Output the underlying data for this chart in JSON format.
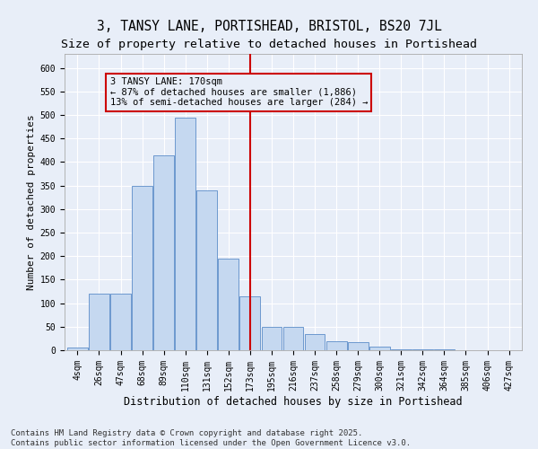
{
  "title1": "3, TANSY LANE, PORTISHEAD, BRISTOL, BS20 7JL",
  "title2": "Size of property relative to detached houses in Portishead",
  "xlabel": "Distribution of detached houses by size in Portishead",
  "ylabel": "Number of detached properties",
  "categories": [
    "4sqm",
    "26sqm",
    "47sqm",
    "68sqm",
    "89sqm",
    "110sqm",
    "131sqm",
    "152sqm",
    "173sqm",
    "195sqm",
    "216sqm",
    "237sqm",
    "258sqm",
    "279sqm",
    "300sqm",
    "321sqm",
    "342sqm",
    "364sqm",
    "385sqm",
    "406sqm",
    "427sqm"
  ],
  "values": [
    5,
    120,
    120,
    350,
    415,
    495,
    340,
    195,
    115,
    50,
    50,
    35,
    20,
    17,
    8,
    2,
    1,
    1,
    0,
    0,
    0
  ],
  "bar_color": "#c5d8f0",
  "bar_edge_color": "#5b8cc8",
  "vline_x_index": 8,
  "vline_color": "#cc0000",
  "annotation_title": "3 TANSY LANE: 170sqm",
  "annotation_line1": "← 87% of detached houses are smaller (1,886)",
  "annotation_line2": "13% of semi-detached houses are larger (284) →",
  "background_color": "#e8eef8",
  "ylim": [
    0,
    630
  ],
  "yticks": [
    0,
    50,
    100,
    150,
    200,
    250,
    300,
    350,
    400,
    450,
    500,
    550,
    600
  ],
  "footer_line1": "Contains HM Land Registry data © Crown copyright and database right 2025.",
  "footer_line2": "Contains public sector information licensed under the Open Government Licence v3.0.",
  "title1_fontsize": 10.5,
  "title2_fontsize": 9.5,
  "xlabel_fontsize": 8.5,
  "ylabel_fontsize": 8,
  "tick_fontsize": 7,
  "footer_fontsize": 6.5,
  "annotation_fontsize": 7.5
}
